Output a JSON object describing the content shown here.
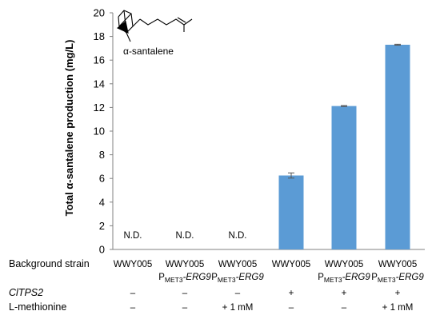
{
  "chart_data": {
    "type": "bar",
    "ylabel_prefix": "Total ",
    "ylabel_greek": "α",
    "ylabel_suffix": "-santalene production (mg/L)",
    "ylim": [
      0,
      20
    ],
    "yticks": [
      "0",
      "2",
      "4",
      "6",
      "8",
      "10",
      "12",
      "14",
      "16",
      "18",
      "20"
    ],
    "grid": false,
    "bar_color": "#5b9bd5",
    "values": [
      null,
      null,
      null,
      6.25,
      12.12,
      17.3
    ],
    "errors": [
      0,
      0,
      0,
      0.22,
      0.04,
      0.04
    ],
    "not_detected_label": "N.D.",
    "structure_label": "α-santalene",
    "table": {
      "rows": [
        {
          "label": "Background strain",
          "label_italic": false,
          "cells": [
            {
              "main": "WWY005",
              "sub_prefix": "",
              "sub_script": "",
              "sub_suffix": ""
            },
            {
              "main": "WWY005",
              "sub_prefix": "P",
              "sub_script": "MET3",
              "sub_suffix": "-ERG9"
            },
            {
              "main": "WWY005",
              "sub_prefix": "P",
              "sub_script": "MET3",
              "sub_suffix": "-ERG9"
            },
            {
              "main": "WWY005",
              "sub_prefix": "",
              "sub_script": "",
              "sub_suffix": ""
            },
            {
              "main": "WWY005",
              "sub_prefix": "P",
              "sub_script": "MET3",
              "sub_suffix": "-ERG9"
            },
            {
              "main": "WWY005",
              "sub_prefix": "P",
              "sub_script": "MET3",
              "sub_suffix": "-ERG9"
            }
          ]
        },
        {
          "label": "ClTPS2",
          "label_italic": true,
          "cells": [
            "–",
            "–",
            "–",
            "+",
            "+",
            "+"
          ]
        },
        {
          "label": "L-methionine",
          "label_italic": false,
          "cells": [
            "–",
            "–",
            "+ 1 mM",
            "–",
            "–",
            "+ 1 mM"
          ]
        }
      ]
    }
  }
}
